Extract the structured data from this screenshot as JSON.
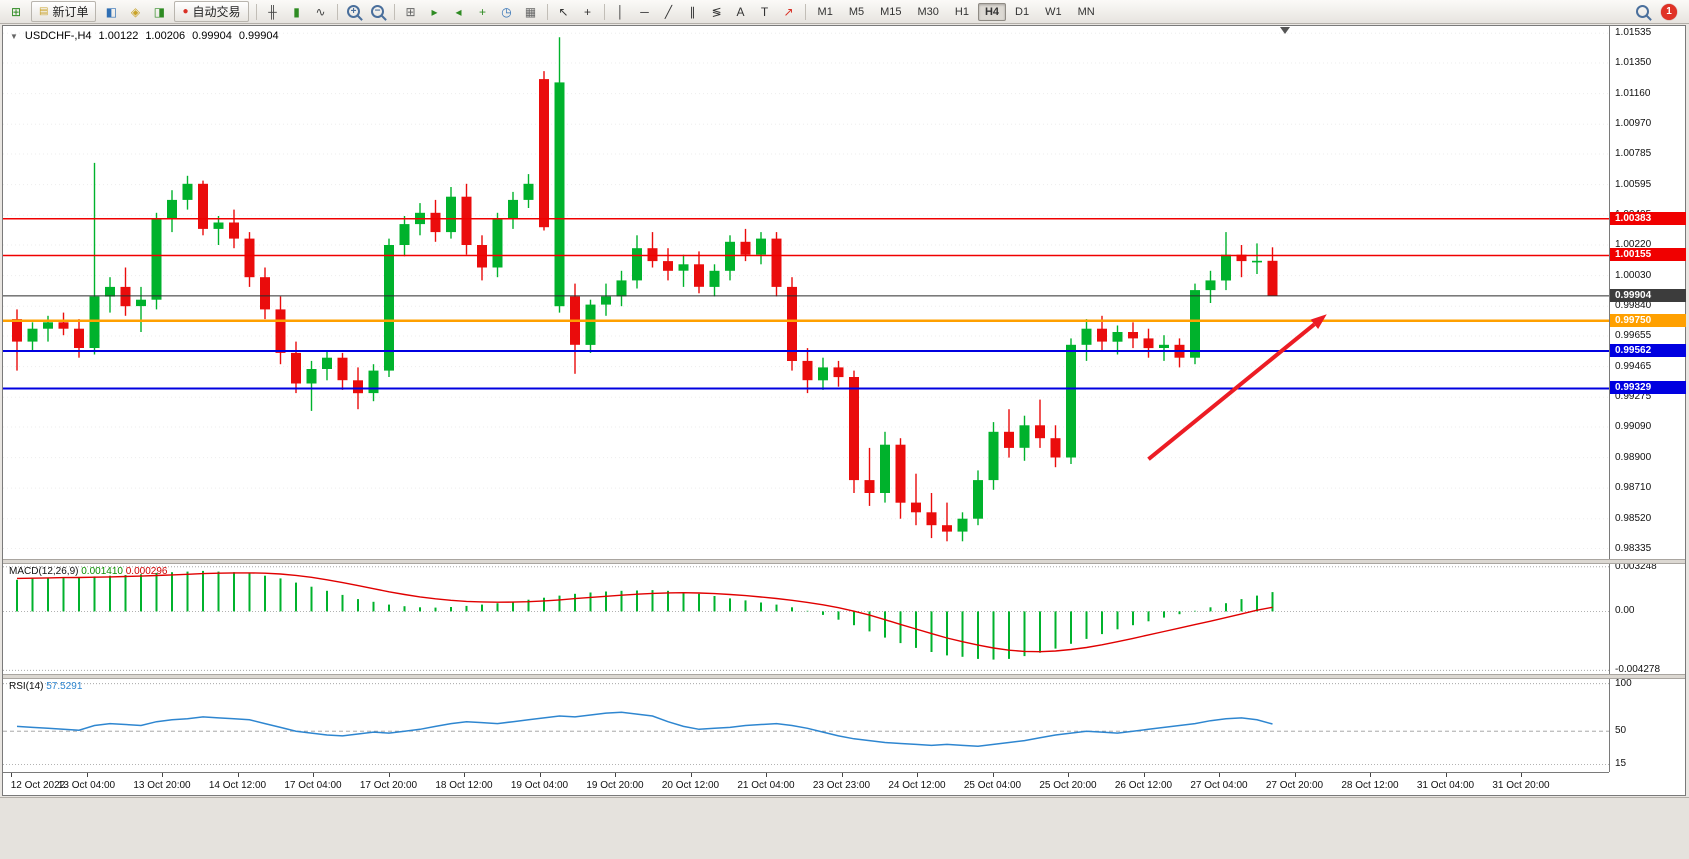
{
  "toolbar": {
    "items": [
      {
        "type": "icon",
        "name": "new-chart-icon",
        "glyph": "⊞",
        "color": "#2e8b22"
      },
      {
        "type": "button",
        "name": "new-order-button",
        "label": "新订单",
        "glyph": "▤",
        "glyph_color": "#c9a227"
      },
      {
        "type": "icon",
        "name": "market-watch-icon",
        "glyph": "◧",
        "color": "#2f6fb4"
      },
      {
        "type": "icon",
        "name": "navigator-icon",
        "glyph": "◈",
        "color": "#c9a227"
      },
      {
        "type": "icon",
        "name": "terminal-icon",
        "glyph": "◨",
        "color": "#2e8b22"
      },
      {
        "type": "button",
        "name": "auto-trading-button",
        "label": "自动交易",
        "glyph": "●",
        "glyph_color": "#d93025"
      },
      {
        "type": "sep"
      },
      {
        "type": "icon",
        "name": "bar-chart-icon",
        "glyph": "╫",
        "color": "#444444"
      },
      {
        "type": "icon",
        "name": "candlestick-icon",
        "glyph": "▮",
        "color": "#2e8b22"
      },
      {
        "type": "icon",
        "name": "line-chart-icon",
        "glyph": "∿",
        "color": "#444444"
      },
      {
        "type": "sep"
      },
      {
        "type": "zoom-in",
        "name": "zoom-in-icon"
      },
      {
        "type": "zoom-out",
        "name": "zoom-out-icon"
      },
      {
        "type": "sep"
      },
      {
        "type": "icon",
        "name": "tile-windows-icon",
        "glyph": "⊞",
        "color": "#666666"
      },
      {
        "type": "icon",
        "name": "auto-scroll-icon",
        "glyph": "▸",
        "color": "#2e8b22"
      },
      {
        "type": "icon",
        "name": "chart-shift-icon",
        "glyph": "◂",
        "color": "#2e8b22"
      },
      {
        "type": "icon",
        "name": "indicators-icon",
        "glyph": "+",
        "color": "#2e8b22"
      },
      {
        "type": "icon",
        "name": "periods-icon",
        "glyph": "◷",
        "color": "#2f6fb4"
      },
      {
        "type": "icon",
        "name": "templates-icon",
        "glyph": "▦",
        "color": "#666666"
      },
      {
        "type": "sep"
      },
      {
        "type": "icon",
        "name": "cursor-icon",
        "glyph": "↖",
        "color": "#333333"
      },
      {
        "type": "icon",
        "name": "crosshair-icon",
        "glyph": "+",
        "color": "#333333"
      },
      {
        "type": "sep"
      },
      {
        "type": "icon",
        "name": "vertical-line-icon",
        "glyph": "│",
        "color": "#333333"
      },
      {
        "type": "icon",
        "name": "horizontal-line-icon",
        "glyph": "─",
        "color": "#333333"
      },
      {
        "type": "icon",
        "name": "trendline-icon",
        "glyph": "╱",
        "color": "#333333"
      },
      {
        "type": "icon",
        "name": "channel-icon",
        "glyph": "∥",
        "color": "#333333"
      },
      {
        "type": "icon",
        "name": "fibonacci-icon",
        "glyph": "≶",
        "color": "#333333"
      },
      {
        "type": "icon",
        "name": "text-icon",
        "glyph": "A",
        "color": "#333333"
      },
      {
        "type": "icon",
        "name": "label-icon",
        "glyph": "T",
        "color": "#333333"
      },
      {
        "type": "icon",
        "name": "arrows-icon",
        "glyph": "↗",
        "color": "#d93025"
      },
      {
        "type": "sep"
      }
    ],
    "timeframes": [
      "M1",
      "M5",
      "M15",
      "M30",
      "H1",
      "H4",
      "D1",
      "W1",
      "MN"
    ],
    "active_timeframe": "H4",
    "notification_count": "1"
  },
  "chart": {
    "type": "candlestick",
    "title": {
      "symbol": "USDCHF-,H4",
      "open": "1.00122",
      "high": "1.00206",
      "low": "0.99904",
      "close": "0.99904"
    },
    "price_range": [
      0.9827,
      1.0158
    ],
    "price_axis": [
      "1.01535",
      "1.01350",
      "1.01160",
      "1.00970",
      "1.00785",
      "1.00595",
      "1.00405",
      "1.00220",
      "1.00030",
      "0.99840",
      "0.99655",
      "0.99465",
      "0.99275",
      "0.99090",
      "0.98900",
      "0.98710",
      "0.98520",
      "0.98335"
    ],
    "hlines": [
      {
        "label": "1.00383",
        "price": 1.00383,
        "color": "#f00000",
        "width": 1.5
      },
      {
        "label": "1.00155",
        "price": 1.00155,
        "color": "#f00000",
        "width": 1.5
      },
      {
        "label": "0.99904",
        "price": 0.99904,
        "color": "#2b2b2b",
        "width": 1,
        "tag": "#3c3c3c",
        "role": "current-price"
      },
      {
        "label": "0.99750",
        "price": 0.9975,
        "color": "#ffa000",
        "width": 2.5
      },
      {
        "label": "0.99562",
        "price": 0.99562,
        "color": "#0000e0",
        "width": 2
      },
      {
        "label": "0.99329",
        "price": 0.99329,
        "color": "#0000e0",
        "width": 2
      }
    ],
    "colors": {
      "up": "#00b22c",
      "down": "#ea0c0c"
    },
    "candles": [
      [
        0.9976,
        0.9982,
        0.9944,
        0.9962
      ],
      [
        0.9962,
        0.9974,
        0.9956,
        0.997
      ],
      [
        0.997,
        0.9978,
        0.9962,
        0.9974
      ],
      [
        0.9974,
        0.998,
        0.9966,
        0.997
      ],
      [
        0.997,
        0.9976,
        0.9952,
        0.9958
      ],
      [
        0.9958,
        1.0073,
        0.9954,
        0.999
      ],
      [
        0.999,
        1.0002,
        0.998,
        0.9996
      ],
      [
        0.9996,
        1.0008,
        0.9978,
        0.9984
      ],
      [
        0.9984,
        0.9996,
        0.9968,
        0.9988
      ],
      [
        0.9988,
        1.0042,
        0.9982,
        1.0038
      ],
      [
        1.0038,
        1.0056,
        1.003,
        1.005
      ],
      [
        1.005,
        1.0065,
        1.0044,
        1.006
      ],
      [
        1.006,
        1.0062,
        1.0028,
        1.0032
      ],
      [
        1.0032,
        1.004,
        1.0022,
        1.0036
      ],
      [
        1.0036,
        1.0044,
        1.002,
        1.0026
      ],
      [
        1.0026,
        1.003,
        0.9996,
        1.0002
      ],
      [
        1.0002,
        1.0008,
        0.9976,
        0.9982
      ],
      [
        0.9982,
        0.999,
        0.9948,
        0.9955
      ],
      [
        0.9955,
        0.9962,
        0.993,
        0.9936
      ],
      [
        0.9936,
        0.995,
        0.9919,
        0.9945
      ],
      [
        0.9945,
        0.9956,
        0.9938,
        0.9952
      ],
      [
        0.9952,
        0.9955,
        0.9932,
        0.9938
      ],
      [
        0.9938,
        0.9946,
        0.992,
        0.993
      ],
      [
        0.993,
        0.9948,
        0.9925,
        0.9944
      ],
      [
        0.9944,
        1.0026,
        0.994,
        1.0022
      ],
      [
        1.0022,
        1.004,
        1.0015,
        1.0035
      ],
      [
        1.0035,
        1.0048,
        1.0028,
        1.0042
      ],
      [
        1.0042,
        1.005,
        1.0024,
        1.003
      ],
      [
        1.003,
        1.0058,
        1.0026,
        1.0052
      ],
      [
        1.0052,
        1.006,
        1.0016,
        1.0022
      ],
      [
        1.0022,
        1.0028,
        1.0,
        1.0008
      ],
      [
        1.0008,
        1.0042,
        1.0002,
        1.0038
      ],
      [
        1.0038,
        1.0055,
        1.0032,
        1.005
      ],
      [
        1.005,
        1.0066,
        1.0045,
        1.006
      ],
      [
        1.0125,
        1.013,
        1.0031,
        1.0033
      ],
      [
        0.9984,
        1.0151,
        0.998,
        1.0123
      ],
      [
        0.999,
        0.9998,
        0.9942,
        0.996
      ],
      [
        0.996,
        0.9988,
        0.9955,
        0.9985
      ],
      [
        0.9985,
        0.9998,
        0.9978,
        0.999
      ],
      [
        0.999,
        1.0006,
        0.9984,
        1.0
      ],
      [
        1.0,
        1.0028,
        0.9995,
        1.002
      ],
      [
        1.002,
        1.003,
        1.0008,
        1.0012
      ],
      [
        1.0012,
        1.002,
        1.0,
        1.0006
      ],
      [
        1.0006,
        1.0016,
        0.9996,
        1.001
      ],
      [
        1.001,
        1.0018,
        0.9992,
        0.9996
      ],
      [
        0.9996,
        1.001,
        0.999,
        1.0006
      ],
      [
        1.0006,
        1.0028,
        1.0,
        1.0024
      ],
      [
        1.0024,
        1.0032,
        1.0012,
        1.0016
      ],
      [
        1.0016,
        1.003,
        1.001,
        1.0026
      ],
      [
        1.0026,
        1.003,
        0.999,
        0.9996
      ],
      [
        0.9996,
        1.0002,
        0.9944,
        0.995
      ],
      [
        0.995,
        0.9958,
        0.993,
        0.9938
      ],
      [
        0.9938,
        0.9952,
        0.9932,
        0.9946
      ],
      [
        0.9946,
        0.995,
        0.9934,
        0.994
      ],
      [
        0.994,
        0.9944,
        0.9868,
        0.9876
      ],
      [
        0.9876,
        0.9896,
        0.986,
        0.9868
      ],
      [
        0.9868,
        0.9906,
        0.9862,
        0.9898
      ],
      [
        0.9898,
        0.9902,
        0.9852,
        0.9862
      ],
      [
        0.9862,
        0.988,
        0.9848,
        0.9856
      ],
      [
        0.9856,
        0.9868,
        0.984,
        0.9848
      ],
      [
        0.9848,
        0.9862,
        0.9838,
        0.9844
      ],
      [
        0.9844,
        0.9856,
        0.9838,
        0.9852
      ],
      [
        0.9852,
        0.9882,
        0.9848,
        0.9876
      ],
      [
        0.9876,
        0.9912,
        0.987,
        0.9906
      ],
      [
        0.9906,
        0.992,
        0.989,
        0.9896
      ],
      [
        0.9896,
        0.9916,
        0.9888,
        0.991
      ],
      [
        0.991,
        0.9926,
        0.9896,
        0.9902
      ],
      [
        0.9902,
        0.991,
        0.9884,
        0.989
      ],
      [
        0.989,
        0.9964,
        0.9886,
        0.996
      ],
      [
        0.996,
        0.9976,
        0.995,
        0.997
      ],
      [
        0.997,
        0.9978,
        0.9956,
        0.9962
      ],
      [
        0.9962,
        0.9972,
        0.9954,
        0.9968
      ],
      [
        0.9968,
        0.9974,
        0.9958,
        0.9964
      ],
      [
        0.9964,
        0.997,
        0.9952,
        0.9958
      ],
      [
        0.9958,
        0.9966,
        0.995,
        0.996
      ],
      [
        0.996,
        0.9964,
        0.9946,
        0.9952
      ],
      [
        0.9952,
        0.9998,
        0.9948,
        0.9994
      ],
      [
        0.9994,
        1.0006,
        0.9986,
        1.0
      ],
      [
        1.0,
        1.003,
        0.9994,
        1.0016
      ],
      [
        1.0016,
        1.0022,
        1.0002,
        1.0012
      ],
      [
        1.0012,
        1.0023,
        1.0004,
        1.00122
      ],
      [
        1.00122,
        1.00206,
        0.99904,
        0.99904
      ]
    ],
    "arrow": {
      "from_bar": 73,
      "from_price": 0.9889,
      "to_bar": 84.5,
      "to_price": 0.9979,
      "color": "#ec1c24",
      "width": 4
    },
    "shift_marker_fr": 0.798,
    "time_axis": [
      "12 Oct 2022",
      "13 Oct 04:00",
      "13 Oct 20:00",
      "14 Oct 12:00",
      "17 Oct 04:00",
      "17 Oct 20:00",
      "18 Oct 12:00",
      "19 Oct 04:00",
      "19 Oct 20:00",
      "20 Oct 12:00",
      "21 Oct 04:00",
      "23 Oct 23:00",
      "24 Oct 12:00",
      "25 Oct 04:00",
      "25 Oct 20:00",
      "26 Oct 12:00",
      "27 Oct 04:00",
      "27 Oct 20:00",
      "28 Oct 12:00",
      "31 Oct 04:00",
      "31 Oct 20:00"
    ],
    "macd": {
      "name": "MACD(12,26,9)",
      "main_value": "0.001410",
      "signal_value": "0.000296",
      "range": [
        -0.00455,
        0.00345
      ],
      "axis_labels": [
        {
          "text": "0.003248",
          "value": 0.003248
        },
        {
          "text": "0.00",
          "value": 0
        },
        {
          "text": "-0.004278",
          "value": -0.004278
        }
      ],
      "histogram_color": "#00b22c",
      "signal_color": "#e00000",
      "histogram": [
        0.0023,
        0.0024,
        0.00245,
        0.0025,
        0.00245,
        0.00255,
        0.0026,
        0.00265,
        0.0027,
        0.0028,
        0.00285,
        0.0029,
        0.00295,
        0.0029,
        0.00285,
        0.0028,
        0.0026,
        0.0024,
        0.0021,
        0.0018,
        0.0015,
        0.0012,
        0.0009,
        0.0007,
        0.0005,
        0.00038,
        0.0003,
        0.00028,
        0.00032,
        0.0004,
        0.0005,
        0.0006,
        0.00072,
        0.00085,
        0.001,
        0.00115,
        0.00128,
        0.00138,
        0.00145,
        0.0015,
        0.00152,
        0.00155,
        0.0015,
        0.0014,
        0.00128,
        0.00112,
        0.00095,
        0.0008,
        0.00065,
        0.0005,
        0.0003,
        5e-05,
        -0.00025,
        -0.0006,
        -0.001,
        -0.00145,
        -0.0019,
        -0.0023,
        -0.00265,
        -0.00295,
        -0.0032,
        -0.0033,
        -0.00345,
        -0.0035,
        -0.00345,
        -0.00325,
        -0.003,
        -0.0027,
        -0.00235,
        -0.002,
        -0.00165,
        -0.0013,
        -0.001,
        -0.00072,
        -0.00045,
        -0.0002,
        5e-05,
        0.0003,
        0.0006,
        0.0009,
        0.00115,
        0.00141
      ],
      "signal": [
        0.0024,
        0.00242,
        0.00244,
        0.00246,
        0.00247,
        0.00249,
        0.00251,
        0.00254,
        0.00257,
        0.00261,
        0.00266,
        0.0027,
        0.00275,
        0.00278,
        0.0028,
        0.0028,
        0.00278,
        0.00272,
        0.00262,
        0.00248,
        0.0023,
        0.0021,
        0.00188,
        0.00165,
        0.00143,
        0.00123,
        0.00106,
        0.00092,
        0.00081,
        0.00073,
        0.00069,
        0.00067,
        0.00068,
        0.00071,
        0.00077,
        0.00084,
        0.00093,
        0.00102,
        0.0011,
        0.00118,
        0.00125,
        0.00131,
        0.00135,
        0.00136,
        0.00134,
        0.0013,
        0.00123,
        0.00115,
        0.00105,
        0.00094,
        0.00081,
        0.00066,
        0.00048,
        0.00027,
        2e-05,
        -0.00027,
        -0.0006,
        -0.00094,
        -0.00128,
        -0.00161,
        -0.00193,
        -0.0022,
        -0.00245,
        -0.00266,
        -0.00282,
        -0.00291,
        -0.00293,
        -0.00288,
        -0.00277,
        -0.00262,
        -0.00243,
        -0.0022,
        -0.00196,
        -0.00171,
        -0.00146,
        -0.00121,
        -0.00096,
        -0.00071,
        -0.00045,
        -0.00018,
        9e-05,
        0.0003
      ]
    },
    "rsi": {
      "name": "RSI(14)",
      "value": "57.5291",
      "range": [
        8,
        105
      ],
      "axis_labels": [
        {
          "text": "100",
          "value": 100
        },
        {
          "text": "50",
          "value": 50
        },
        {
          "text": "15",
          "value": 15
        }
      ],
      "color": "#2e86d0",
      "values": [
        55,
        54,
        53,
        52,
        51,
        56,
        58,
        57,
        56,
        60,
        62,
        63,
        65,
        64,
        63,
        62,
        58,
        54,
        50,
        48,
        46,
        45,
        47,
        49,
        48,
        50,
        52,
        55,
        58,
        60,
        59,
        58,
        60,
        62,
        64,
        66,
        65,
        67,
        69,
        70,
        68,
        66,
        60,
        55,
        52,
        53,
        54,
        56,
        57,
        58,
        56,
        53,
        49,
        45,
        42,
        40,
        38,
        37,
        36,
        35,
        36,
        35,
        34,
        36,
        38,
        40,
        43,
        46,
        48,
        50,
        49,
        48,
        50,
        52,
        54,
        56,
        58,
        61,
        63,
        64,
        62,
        57.53
      ]
    }
  }
}
